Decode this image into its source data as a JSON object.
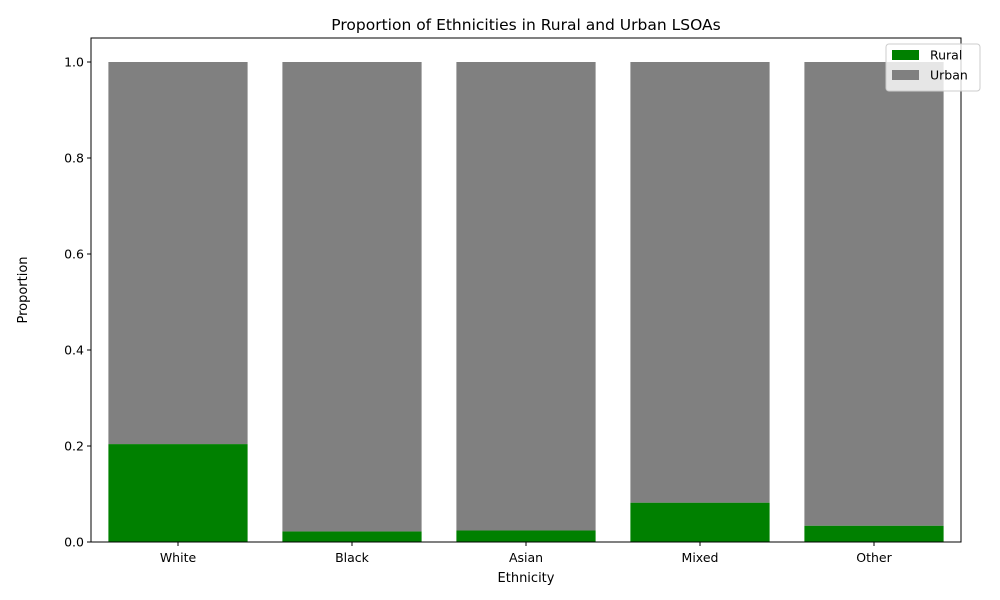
{
  "chart_data": {
    "type": "bar",
    "stacked": true,
    "title": "Proportion of Ethnicities in Rural and Urban LSOAs",
    "xlabel": "Ethnicity",
    "ylabel": "Proportion",
    "categories": [
      "White",
      "Black",
      "Asian",
      "Mixed",
      "Other"
    ],
    "series": [
      {
        "name": "Rural",
        "color": "#008000",
        "values": [
          0.204,
          0.022,
          0.024,
          0.082,
          0.034
        ]
      },
      {
        "name": "Urban",
        "color": "#808080",
        "values": [
          0.796,
          0.978,
          0.976,
          0.918,
          0.966
        ]
      }
    ],
    "ylim": [
      0,
      1.05
    ],
    "yticks": [
      "0.0",
      "0.2",
      "0.4",
      "0.6",
      "0.8",
      "1.0"
    ],
    "grid": false,
    "legend_position": "top-right"
  }
}
